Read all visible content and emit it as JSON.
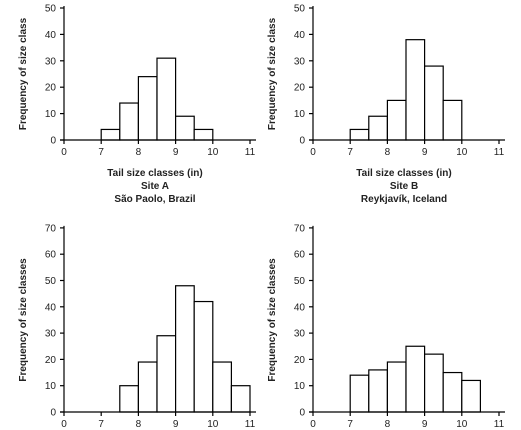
{
  "chart_data": [
    {
      "type": "bar",
      "ylabel": "Frequency of size class",
      "xlabel": "Tail size classes (in)",
      "site": "Site A",
      "location": "São Paolo, Brazil",
      "bins": [
        [
          7,
          7.5
        ],
        [
          7.5,
          8
        ],
        [
          8,
          8.5
        ],
        [
          8.5,
          9
        ],
        [
          9,
          9.5
        ],
        [
          9.5,
          10
        ]
      ],
      "values": [
        4,
        14,
        24,
        31,
        9,
        4
      ],
      "xticks": [
        "0",
        "7",
        "8",
        "9",
        "10",
        "11"
      ],
      "yticks": [
        "0",
        "10",
        "20",
        "30",
        "40",
        "50"
      ],
      "ylim": [
        0,
        50
      ]
    },
    {
      "type": "bar",
      "ylabel": "Frequency of size class",
      "xlabel": "Tail size classes (in)",
      "site": "Site B",
      "location": "Reykjavík, Iceland",
      "bins": [
        [
          7,
          7.5
        ],
        [
          7.5,
          8
        ],
        [
          8,
          8.5
        ],
        [
          8.5,
          9
        ],
        [
          9,
          9.5
        ],
        [
          9.5,
          10
        ]
      ],
      "values": [
        4,
        9,
        15,
        38,
        28,
        15
      ],
      "xticks": [
        "0",
        "7",
        "8",
        "9",
        "10",
        "11"
      ],
      "yticks": [
        "0",
        "10",
        "20",
        "30",
        "40",
        "50"
      ],
      "ylim": [
        0,
        50
      ]
    },
    {
      "type": "bar",
      "ylabel": "Frequency of size classes",
      "bins": [
        [
          7.5,
          8
        ],
        [
          8,
          8.5
        ],
        [
          8.5,
          9
        ],
        [
          9,
          9.5
        ],
        [
          9.5,
          10
        ],
        [
          10,
          10.5
        ],
        [
          10.5,
          11
        ]
      ],
      "values": [
        10,
        19,
        29,
        48,
        42,
        19,
        10
      ],
      "xticks": [
        "0",
        "7",
        "8",
        "9",
        "10",
        "11"
      ],
      "yticks": [
        "0",
        "10",
        "20",
        "30",
        "40",
        "50",
        "60",
        "70"
      ],
      "ylim": [
        0,
        70
      ]
    },
    {
      "type": "bar",
      "ylabel": "Frequency of size classes",
      "bins": [
        [
          7,
          7.5
        ],
        [
          7.5,
          8
        ],
        [
          8,
          8.5
        ],
        [
          8.5,
          9
        ],
        [
          9,
          9.5
        ],
        [
          9.5,
          10
        ],
        [
          10,
          10.5
        ]
      ],
      "values": [
        14,
        16,
        19,
        25,
        22,
        15,
        12
      ],
      "xticks": [
        "0",
        "7",
        "8",
        "9",
        "10",
        "11"
      ],
      "yticks": [
        "0",
        "10",
        "20",
        "30",
        "40",
        "50",
        "60",
        "70"
      ],
      "ylim": [
        0,
        70
      ]
    }
  ]
}
